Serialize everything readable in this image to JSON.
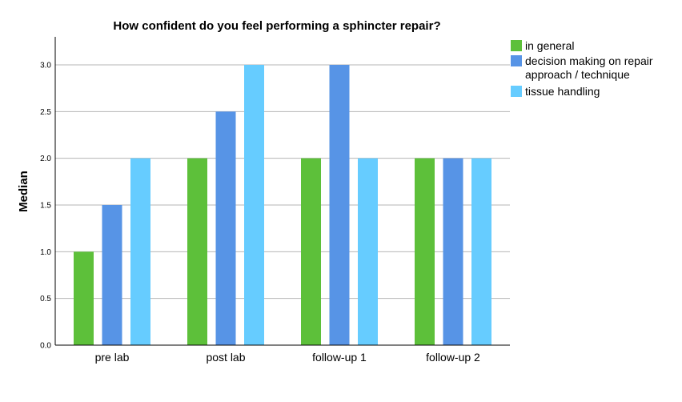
{
  "chart_data": {
    "type": "bar",
    "title": "How confident do you feel performing a sphincter repair?",
    "ylabel": "Median",
    "xlabel": "",
    "ylim": [
      0,
      3.3
    ],
    "yticks": [
      "0.0",
      "0.5",
      "1.0",
      "1.5",
      "2.0",
      "2.5",
      "3.0"
    ],
    "grid": true,
    "legend_position": "top-right",
    "categories": [
      "pre lab",
      "post lab",
      "follow-up 1",
      "follow-up 2"
    ],
    "series": [
      {
        "name": "in general",
        "color": "#5dc03a",
        "values": [
          1.0,
          2.0,
          2.0,
          2.0
        ]
      },
      {
        "name": "decision making on repair approach / technique",
        "name_lines": [
          "decision making on repair",
          "approach / technique"
        ],
        "color": "#5794e6",
        "values": [
          1.5,
          2.5,
          3.0,
          2.0
        ]
      },
      {
        "name": "tissue handling",
        "color": "#66ccff",
        "values": [
          2.0,
          3.0,
          2.0,
          2.0
        ]
      }
    ]
  }
}
